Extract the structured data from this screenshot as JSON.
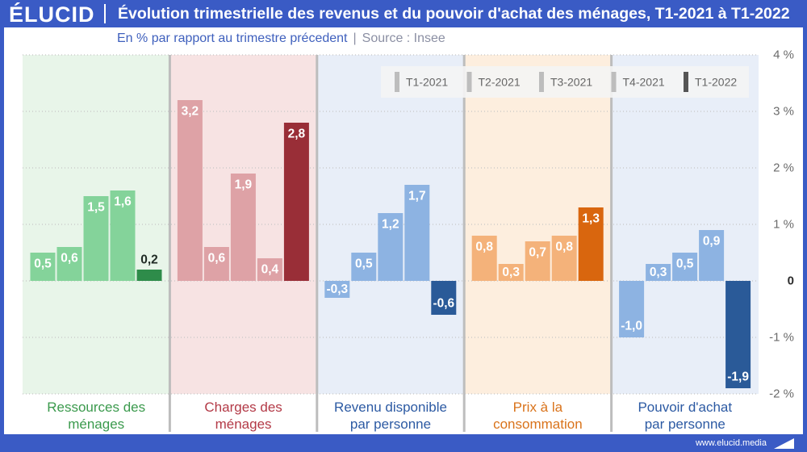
{
  "brand": {
    "logo_text": "ÉLUCID",
    "website": "www.elucid.media"
  },
  "chart_data": {
    "type": "bar",
    "title": "Évolution trimestrielle des revenus et du pouvoir d'achat des ménages, T1-2021 à T1-2022",
    "subtitle": "En % par rapport au trimestre précedent",
    "subtitle_separator": "|",
    "source": "Source : Insee",
    "categories": [
      "Ressources des\nménages",
      "Charges des\nménages",
      "Revenu disponible\npar personne",
      "Prix à la\nconsommation",
      "Pouvoir d'achat\npar personne"
    ],
    "series": [
      {
        "name": "T1-2021",
        "values": [
          0.5,
          3.2,
          -0.3,
          0.8,
          -1.0
        ]
      },
      {
        "name": "T2-2021",
        "values": [
          0.6,
          0.6,
          0.5,
          0.3,
          0.3
        ]
      },
      {
        "name": "T3-2021",
        "values": [
          1.5,
          1.9,
          1.2,
          0.7,
          0.5
        ]
      },
      {
        "name": "T4-2021",
        "values": [
          1.6,
          0.4,
          1.7,
          0.8,
          0.9
        ]
      },
      {
        "name": "T1-2022",
        "values": [
          0.2,
          2.8,
          -0.6,
          1.3,
          -1.9
        ]
      }
    ],
    "ylim": [
      -2,
      4
    ],
    "yticks": [
      4,
      3,
      2,
      1,
      0,
      -1,
      -2
    ],
    "ytick_labels": [
      "4 %",
      "3 %",
      "2 %",
      "1 %",
      "0",
      "-1 %",
      "-2 %"
    ],
    "y_axis_position": "right",
    "grid": true,
    "legend_placement": "top-right"
  },
  "colors": {
    "brand": "#3a5bc5",
    "subtitle": "#3f60bd",
    "source": "#8b8fa3",
    "divider": "#bdbdbd",
    "grid": "#c4c4c4",
    "axis_label": "#6b6b6b",
    "axis_zero": "#2b2b2b",
    "legend_bg": "#f4f4f4",
    "legend_text": "#666666",
    "legend_marker": "#bdbdbd",
    "legend_marker_last": "#555555",
    "value_label_inside": "#ffffff",
    "value_label_outside": "#1f2a24",
    "panels": [
      {
        "background": "#e8f5e9",
        "bar": "#84d39a",
        "bar_last": "#2e8c4a",
        "label": "#3b9a4d"
      },
      {
        "background": "#f7e3e3",
        "bar": "#dea2a6",
        "bar_last": "#992e37",
        "label": "#b33a47"
      },
      {
        "background": "#e8eef8",
        "bar": "#8db3e2",
        "bar_last": "#2a5a98",
        "label": "#2c5aa3"
      },
      {
        "background": "#fdeede",
        "bar": "#f4b27a",
        "bar_last": "#d9660e",
        "label": "#d9731b"
      },
      {
        "background": "#e8eef8",
        "bar": "#8db3e2",
        "bar_last": "#2a5a98",
        "label": "#2c5aa3"
      }
    ]
  }
}
